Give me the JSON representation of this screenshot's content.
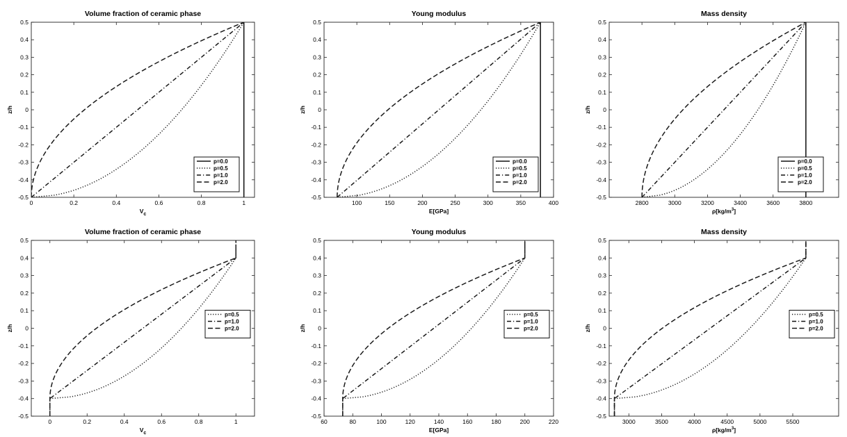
{
  "figure": {
    "panels": [
      {
        "title": "Volume fraction of ceramic phase",
        "xlabel": "V",
        "xlabel_sub": "c",
        "xlabel_sup": "",
        "ylabel": "z/h",
        "xlim": [
          0,
          1.05
        ],
        "ylim": [
          -0.5,
          0.5
        ],
        "xticks": [
          0,
          0.2,
          0.4,
          0.6,
          0.8,
          1
        ],
        "xticklabels": [
          "0",
          "0.2",
          "0.4",
          "0.6",
          "0.8",
          "1"
        ],
        "yticks": [
          -0.5,
          -0.4,
          -0.3,
          -0.2,
          -0.1,
          0,
          0.1,
          0.2,
          0.3,
          0.4,
          0.5
        ],
        "yticklabels": [
          "-0.5",
          "-0.4",
          "-0.3",
          "-0.2",
          "-0.1",
          "0",
          "0.1",
          "0.2",
          "0.3",
          "0.4",
          "0.5"
        ],
        "curve": {
          "min": 0,
          "max": 1,
          "a": -0.5,
          "b": 0.5
        },
        "series": [
          {
            "name": "p=0.0",
            "p": 0.0,
            "style": "solid"
          },
          {
            "name": "p=0.5",
            "p": 0.5,
            "style": "dotted"
          },
          {
            "name": "p=1.0",
            "p": 1.0,
            "style": "dashdot"
          },
          {
            "name": "p=2.0",
            "p": 2.0,
            "style": "dashed"
          }
        ],
        "legend": "bottom-right"
      },
      {
        "title": "Young modulus",
        "xlabel": "E[GPa]",
        "xlabel_sub": "",
        "xlabel_sup": "",
        "ylabel": "z/h",
        "xlim": [
          50,
          400
        ],
        "ylim": [
          -0.5,
          0.5
        ],
        "xticks": [
          100,
          150,
          200,
          250,
          300,
          350,
          400
        ],
        "xticklabels": [
          "100",
          "150",
          "200",
          "250",
          "300",
          "350",
          "400"
        ],
        "yticks": [
          -0.5,
          -0.4,
          -0.3,
          -0.2,
          -0.1,
          0,
          0.1,
          0.2,
          0.3,
          0.4,
          0.5
        ],
        "yticklabels": [
          "-0.5",
          "-0.4",
          "-0.3",
          "-0.2",
          "-0.1",
          "0",
          "0.1",
          "0.2",
          "0.3",
          "0.4",
          "0.5"
        ],
        "curve": {
          "min": 70,
          "max": 380,
          "a": -0.5,
          "b": 0.5
        },
        "series": [
          {
            "name": "p=0.0",
            "p": 0.0,
            "style": "solid"
          },
          {
            "name": "p=0.5",
            "p": 0.5,
            "style": "dotted"
          },
          {
            "name": "p=1.0",
            "p": 1.0,
            "style": "dashdot"
          },
          {
            "name": "p=2.0",
            "p": 2.0,
            "style": "dashed"
          }
        ],
        "legend": "bottom-right"
      },
      {
        "title": "Mass density",
        "xlabel": "ρ[kg/m",
        "xlabel_sub": "",
        "xlabel_sup": "3",
        "xlabel_tail": "]",
        "ylabel": "z/h",
        "xlim": [
          2600,
          4000
        ],
        "ylim": [
          -0.5,
          0.5
        ],
        "xticks": [
          2800,
          3000,
          3200,
          3400,
          3600,
          3800
        ],
        "xticklabels": [
          "2800",
          "3000",
          "3200",
          "3400",
          "3600",
          "3800"
        ],
        "yticks": [
          -0.5,
          -0.4,
          -0.3,
          -0.2,
          -0.1,
          0,
          0.1,
          0.2,
          0.3,
          0.4,
          0.5
        ],
        "yticklabels": [
          "-0.5",
          "-0.4",
          "-0.3",
          "-0.2",
          "-0.1",
          "0",
          "0.1",
          "0.2",
          "0.3",
          "0.4",
          "0.5"
        ],
        "curve": {
          "min": 2800,
          "max": 3800,
          "a": -0.5,
          "b": 0.5
        },
        "series": [
          {
            "name": "p=0.0",
            "p": 0.0,
            "style": "solid"
          },
          {
            "name": "p=0.5",
            "p": 0.5,
            "style": "dotted"
          },
          {
            "name": "p=1.0",
            "p": 1.0,
            "style": "dashdot"
          },
          {
            "name": "p=2.0",
            "p": 2.0,
            "style": "dashed"
          }
        ],
        "legend": "bottom-right"
      },
      {
        "title": "Volume fraction of ceramic phase",
        "xlabel": "V",
        "xlabel_sub": "c",
        "xlabel_sup": "",
        "ylabel": "z/h",
        "xlim": [
          -0.1,
          1.1
        ],
        "ylim": [
          -0.5,
          0.5
        ],
        "xticks": [
          0,
          0.2,
          0.4,
          0.6,
          0.8,
          1
        ],
        "xticklabels": [
          "0",
          "0.2",
          "0.4",
          "0.6",
          "0.8",
          "1"
        ],
        "yticks": [
          -0.5,
          -0.4,
          -0.3,
          -0.2,
          -0.1,
          0,
          0.1,
          0.2,
          0.3,
          0.4,
          0.5
        ],
        "yticklabels": [
          "-0.5",
          "-0.4",
          "-0.3",
          "-0.2",
          "-0.1",
          "0",
          "0.1",
          "0.2",
          "0.3",
          "0.4",
          "0.5"
        ],
        "curve": {
          "min": 0,
          "max": 1,
          "a": -0.4,
          "b": 0.4
        },
        "series": [
          {
            "name": "p=0.5",
            "p": 0.5,
            "style": "dotted"
          },
          {
            "name": "p=1.0",
            "p": 1.0,
            "style": "dashdot"
          },
          {
            "name": "p=2.0",
            "p": 2.0,
            "style": "dashed"
          }
        ],
        "legend": "center-right"
      },
      {
        "title": "Young modulus",
        "xlabel": "E[GPa]",
        "xlabel_sub": "",
        "xlabel_sup": "",
        "ylabel": "z/h",
        "xlim": [
          60,
          220
        ],
        "ylim": [
          -0.5,
          0.5
        ],
        "xticks": [
          60,
          80,
          100,
          120,
          140,
          160,
          180,
          200,
          220
        ],
        "xticklabels": [
          "60",
          "80",
          "100",
          "120",
          "140",
          "160",
          "180",
          "200",
          "220"
        ],
        "yticks": [
          -0.5,
          -0.4,
          -0.3,
          -0.2,
          -0.1,
          0,
          0.1,
          0.2,
          0.3,
          0.4,
          0.5
        ],
        "yticklabels": [
          "-0.5",
          "-0.4",
          "-0.3",
          "-0.2",
          "-0.1",
          "0",
          "0.1",
          "0.2",
          "0.3",
          "0.4",
          "0.5"
        ],
        "curve": {
          "min": 73,
          "max": 200,
          "a": -0.4,
          "b": 0.4
        },
        "series": [
          {
            "name": "p=0.5",
            "p": 0.5,
            "style": "dotted"
          },
          {
            "name": "p=1.0",
            "p": 1.0,
            "style": "dashdot"
          },
          {
            "name": "p=2.0",
            "p": 2.0,
            "style": "dashed"
          }
        ],
        "legend": "center-right"
      },
      {
        "title": "Mass density",
        "xlabel": "ρ[kg/m",
        "xlabel_sub": "",
        "xlabel_sup": "3",
        "xlabel_tail": "]",
        "ylabel": "z/h",
        "xlim": [
          2700,
          6200
        ],
        "ylim": [
          -0.5,
          0.5
        ],
        "xticks": [
          3000,
          3500,
          4000,
          4500,
          5000,
          5500
        ],
        "xticklabels": [
          "3000",
          "3500",
          "4000",
          "4500",
          "5000",
          "5500"
        ],
        "yticks": [
          -0.5,
          -0.4,
          -0.3,
          -0.2,
          -0.1,
          0,
          0.1,
          0.2,
          0.3,
          0.4,
          0.5
        ],
        "yticklabels": [
          "-0.5",
          "-0.4",
          "-0.3",
          "-0.2",
          "-0.1",
          "0",
          "0.1",
          "0.2",
          "0.3",
          "0.4",
          "0.5"
        ],
        "curve": {
          "min": 2780,
          "max": 5700,
          "a": -0.4,
          "b": 0.4
        },
        "series": [
          {
            "name": "p=0.5",
            "p": 0.5,
            "style": "dotted"
          },
          {
            "name": "p=1.0",
            "p": 1.0,
            "style": "dashdot"
          },
          {
            "name": "p=2.0",
            "p": 2.0,
            "style": "dashed"
          }
        ],
        "legend": "center-right"
      }
    ]
  },
  "chart_data": [
    {
      "type": "line",
      "title": "Volume fraction of ceramic phase",
      "xlabel": "Vc",
      "ylabel": "z/h",
      "xlim": [
        0,
        1.05
      ],
      "ylim": [
        -0.5,
        0.5
      ],
      "series": [
        {
          "name": "p=0.0",
          "x": [
            1,
            1,
            1,
            1,
            1
          ],
          "y": [
            -0.5,
            -0.25,
            0,
            0.25,
            0.5
          ]
        },
        {
          "name": "p=0.5",
          "x": [
            0,
            0.5,
            0.707,
            0.866,
            1
          ],
          "y": [
            -0.5,
            -0.25,
            0,
            0.25,
            0.5
          ]
        },
        {
          "name": "p=1.0",
          "x": [
            0,
            0.25,
            0.5,
            0.75,
            1
          ],
          "y": [
            -0.5,
            -0.25,
            0,
            0.25,
            0.5
          ]
        },
        {
          "name": "p=2.0",
          "x": [
            0,
            0.0625,
            0.25,
            0.5625,
            1
          ],
          "y": [
            -0.5,
            -0.25,
            0,
            0.25,
            0.5
          ]
        }
      ]
    },
    {
      "type": "line",
      "title": "Young modulus",
      "xlabel": "E[GPa]",
      "ylabel": "z/h",
      "xlim": [
        50,
        400
      ],
      "ylim": [
        -0.5,
        0.5
      ],
      "series": [
        {
          "name": "p=0.0",
          "x": [
            380,
            380,
            380,
            380,
            380
          ],
          "y": [
            -0.5,
            -0.25,
            0,
            0.25,
            0.5
          ]
        },
        {
          "name": "p=0.5",
          "x": [
            70,
            225,
            289,
            338,
            380
          ],
          "y": [
            -0.5,
            -0.25,
            0,
            0.25,
            0.5
          ]
        },
        {
          "name": "p=1.0",
          "x": [
            70,
            147.5,
            225,
            302.5,
            380
          ],
          "y": [
            -0.5,
            -0.25,
            0,
            0.25,
            0.5
          ]
        },
        {
          "name": "p=2.0",
          "x": [
            70,
            89,
            147.5,
            244,
            380
          ],
          "y": [
            -0.5,
            -0.25,
            0,
            0.25,
            0.5
          ]
        }
      ]
    },
    {
      "type": "line",
      "title": "Mass density",
      "xlabel": "ρ[kg/m3]",
      "ylabel": "z/h",
      "xlim": [
        2600,
        4000
      ],
      "ylim": [
        -0.5,
        0.5
      ],
      "series": [
        {
          "name": "p=0.0",
          "x": [
            3800,
            3800,
            3800,
            3800,
            3800
          ],
          "y": [
            -0.5,
            -0.25,
            0,
            0.25,
            0.5
          ]
        },
        {
          "name": "p=0.5",
          "x": [
            2800,
            3300,
            3507,
            3666,
            3800
          ],
          "y": [
            -0.5,
            -0.25,
            0,
            0.25,
            0.5
          ]
        },
        {
          "name": "p=1.0",
          "x": [
            2800,
            3050,
            3300,
            3550,
            3800
          ],
          "y": [
            -0.5,
            -0.25,
            0,
            0.25,
            0.5
          ]
        },
        {
          "name": "p=2.0",
          "x": [
            2800,
            2862,
            3050,
            3362,
            3800
          ],
          "y": [
            -0.5,
            -0.25,
            0,
            0.25,
            0.5
          ]
        }
      ]
    },
    {
      "type": "line",
      "title": "Volume fraction of ceramic phase",
      "xlabel": "Vc",
      "ylabel": "z/h",
      "xlim": [
        -0.1,
        1.1
      ],
      "ylim": [
        -0.5,
        0.5
      ],
      "series": [
        {
          "name": "p=0.5",
          "x": [
            0,
            0,
            0.5,
            0.707,
            0.866,
            1,
            1
          ],
          "y": [
            -0.5,
            -0.4,
            -0.2,
            0,
            0.2,
            0.4,
            0.5
          ]
        },
        {
          "name": "p=1.0",
          "x": [
            0,
            0,
            0.25,
            0.5,
            0.75,
            1,
            1
          ],
          "y": [
            -0.5,
            -0.4,
            -0.2,
            0,
            0.2,
            0.4,
            0.5
          ]
        },
        {
          "name": "p=2.0",
          "x": [
            0,
            0,
            0.0625,
            0.25,
            0.5625,
            1,
            1
          ],
          "y": [
            -0.5,
            -0.4,
            -0.2,
            0,
            0.2,
            0.4,
            0.5
          ]
        }
      ]
    },
    {
      "type": "line",
      "title": "Young modulus",
      "xlabel": "E[GPa]",
      "ylabel": "z/h",
      "xlim": [
        60,
        220
      ],
      "ylim": [
        -0.5,
        0.5
      ],
      "series": [
        {
          "name": "p=0.5",
          "x": [
            73,
            73,
            136.5,
            162.8,
            183,
            200,
            200
          ],
          "y": [
            -0.5,
            -0.4,
            -0.2,
            0,
            0.2,
            0.4,
            0.5
          ]
        },
        {
          "name": "p=1.0",
          "x": [
            73,
            73,
            104.8,
            136.5,
            168.3,
            200,
            200
          ],
          "y": [
            -0.5,
            -0.4,
            -0.2,
            0,
            0.2,
            0.4,
            0.5
          ]
        },
        {
          "name": "p=2.0",
          "x": [
            73,
            73,
            81,
            104.8,
            144.4,
            200,
            200
          ],
          "y": [
            -0.5,
            -0.4,
            -0.2,
            0,
            0.2,
            0.4,
            0.5
          ]
        }
      ]
    },
    {
      "type": "line",
      "title": "Mass density",
      "xlabel": "ρ[kg/m3]",
      "ylabel": "z/h",
      "xlim": [
        2700,
        6200
      ],
      "ylim": [
        -0.5,
        0.5
      ],
      "series": [
        {
          "name": "p=0.5",
          "x": [
            2780,
            2780,
            4240,
            4845,
            5309,
            5700,
            5700
          ],
          "y": [
            -0.5,
            -0.4,
            -0.2,
            0,
            0.2,
            0.4,
            0.5
          ]
        },
        {
          "name": "p=1.0",
          "x": [
            2780,
            2780,
            3510,
            4240,
            4970,
            5700,
            5700
          ],
          "y": [
            -0.5,
            -0.4,
            -0.2,
            0,
            0.2,
            0.4,
            0.5
          ]
        },
        {
          "name": "p=2.0",
          "x": [
            2780,
            2780,
            2962,
            3510,
            4422,
            5700,
            5700
          ],
          "y": [
            -0.5,
            -0.4,
            -0.2,
            0,
            0.2,
            0.4,
            0.5
          ]
        }
      ]
    }
  ]
}
